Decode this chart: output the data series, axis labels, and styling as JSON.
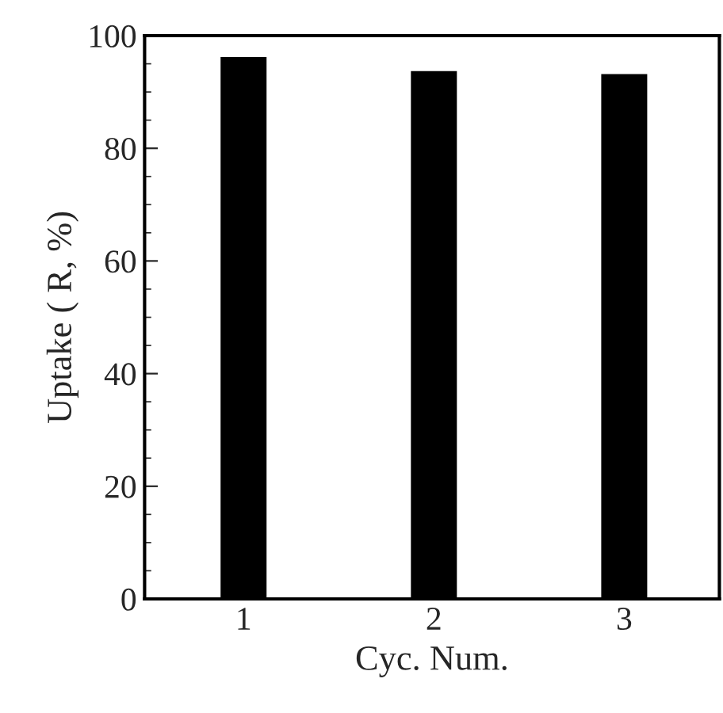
{
  "chart_data": {
    "type": "bar",
    "xlabel": "Cyc. Num.",
    "ylabel": "Uptake ( R, %)",
    "categories": [
      "1",
      "2",
      "3"
    ],
    "series": [
      {
        "color": "#000000",
        "values": [
          96,
          93.5,
          93
        ]
      }
    ],
    "ylim": [
      0,
      100
    ],
    "yticks": [
      0,
      20,
      40,
      60,
      80,
      100
    ],
    "grid": false,
    "legend": false
  }
}
